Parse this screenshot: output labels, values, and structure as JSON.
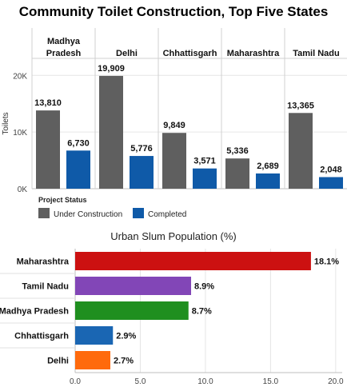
{
  "chart_data": [
    {
      "type": "bar",
      "title": "Community Toilet Construction, Top Five States",
      "ylabel": "Toilets",
      "ylim": [
        0,
        23000
      ],
      "yticks": [
        0,
        10000,
        20000
      ],
      "ytick_labels": [
        "0K",
        "10K",
        "20K"
      ],
      "grid": "horizontal",
      "categories": [
        "Madhya Pradesh",
        "Delhi",
        "Chhattisgarh",
        "Maharashtra",
        "Tamil Nadu"
      ],
      "category_labels": [
        [
          "Madhya",
          "Pradesh"
        ],
        [
          "Delhi"
        ],
        [
          "Chhattisgarh"
        ],
        [
          "Maharashtra"
        ],
        [
          "Tamil Nadu"
        ]
      ],
      "series": [
        {
          "name": "Under Construction",
          "color": "#5f5f5f",
          "values": [
            13810,
            19909,
            9849,
            5336,
            13365
          ],
          "labels": [
            "13,810",
            "19,909",
            "9,849",
            "5,336",
            "13,365"
          ]
        },
        {
          "name": "Completed",
          "color": "#0f5aa8",
          "values": [
            6730,
            5776,
            3571,
            2689,
            2048
          ],
          "labels": [
            "6,730",
            "5,776",
            "3,571",
            "2,689",
            "2,048"
          ]
        }
      ],
      "legend_title": "Project Status",
      "legend_position": "bottom-left"
    },
    {
      "type": "bar",
      "orientation": "horizontal",
      "title": "Urban Slum Population (%)",
      "categories": [
        "Maharashtra",
        "Tamil Nadu",
        "Madhya Pradesh",
        "Chhattisgarh",
        "Delhi"
      ],
      "values": [
        18.1,
        8.9,
        8.7,
        2.9,
        2.7
      ],
      "labels": [
        "18.1%",
        "8.9%",
        "8.7%",
        "2.9%",
        "2.7%"
      ],
      "colors": [
        "#cc1111",
        "#8246b7",
        "#1f8f1f",
        "#1a66b3",
        "#ff6a0c"
      ],
      "xlim": [
        0,
        20.5
      ],
      "xticks": [
        0,
        5,
        10,
        15,
        20
      ],
      "xtick_labels": [
        "0.0",
        "5.0",
        "10.0",
        "15.0",
        "20.0"
      ],
      "grid": "vertical"
    }
  ]
}
